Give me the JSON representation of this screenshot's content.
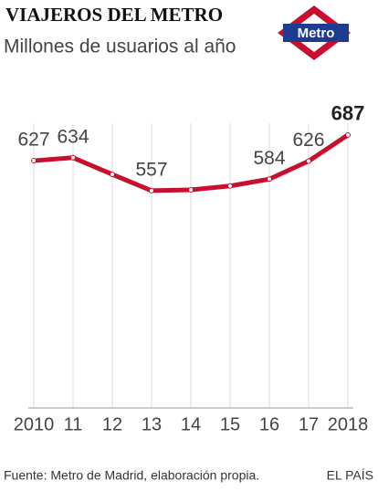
{
  "chart_data": {
    "type": "line",
    "title": "VIAJEROS DEL METRO",
    "subtitle": "Millones de usuarios al año",
    "logo_text": "Metro",
    "categories": [
      "2010",
      "11",
      "12",
      "13",
      "14",
      "15",
      "16",
      "17",
      "2018"
    ],
    "series": [
      {
        "name": "Viajeros",
        "color": "#c8102e",
        "values": [
          627,
          634,
          595,
          557,
          559,
          568,
          584,
          626,
          687
        ],
        "value_labels": [
          "627",
          "634",
          null,
          "557",
          null,
          null,
          "584",
          "626",
          "687"
        ]
      }
    ],
    "ylim": [
      50,
      740
    ],
    "grid": true,
    "source": "Fuente: Metro de Madrid, elaboración propia.",
    "publisher": "EL PAÍS"
  }
}
